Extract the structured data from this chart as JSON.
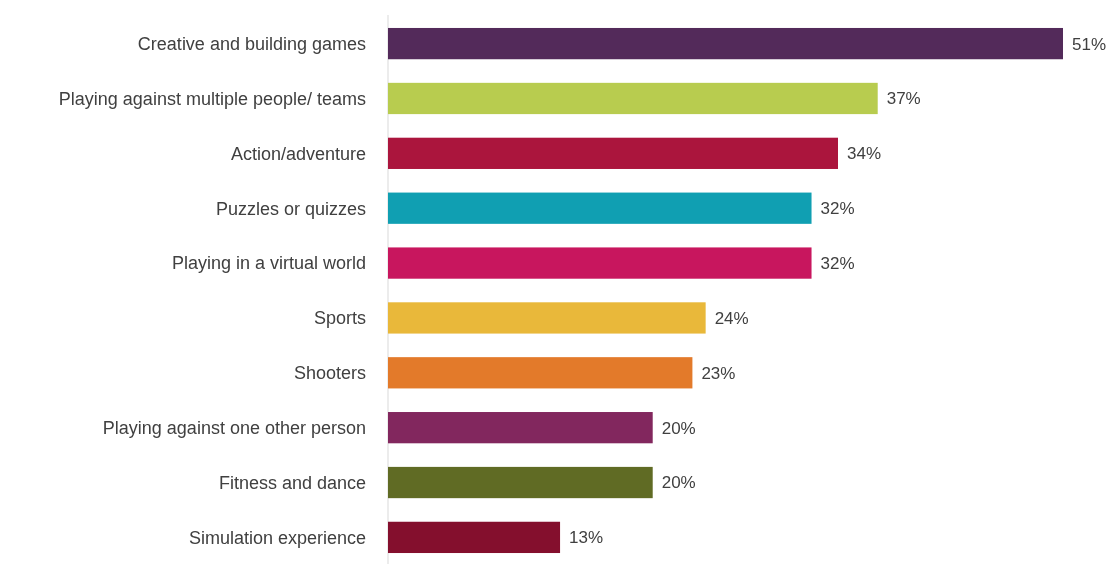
{
  "chart_data": {
    "type": "bar",
    "orientation": "horizontal",
    "categories": [
      "Creative and building games",
      "Playing against multiple people/ teams",
      "Action/adventure",
      "Puzzles or quizzes",
      "Playing in a virtual world",
      "Sports",
      "Shooters",
      "Playing against one other person",
      "Fitness and dance",
      "Simulation experience"
    ],
    "values": [
      51,
      37,
      34,
      32,
      32,
      24,
      23,
      20,
      20,
      13
    ],
    "value_labels": [
      "51%",
      "37%",
      "34%",
      "32%",
      "32%",
      "24%",
      "23%",
      "20%",
      "20%",
      "13%"
    ],
    "colors": [
      "#532a5a",
      "#b8cc4f",
      "#ab153d",
      "#109fb2",
      "#c8165e",
      "#e9b83a",
      "#e37a2a",
      "#82275e",
      "#606b24",
      "#840f2d"
    ]
  }
}
